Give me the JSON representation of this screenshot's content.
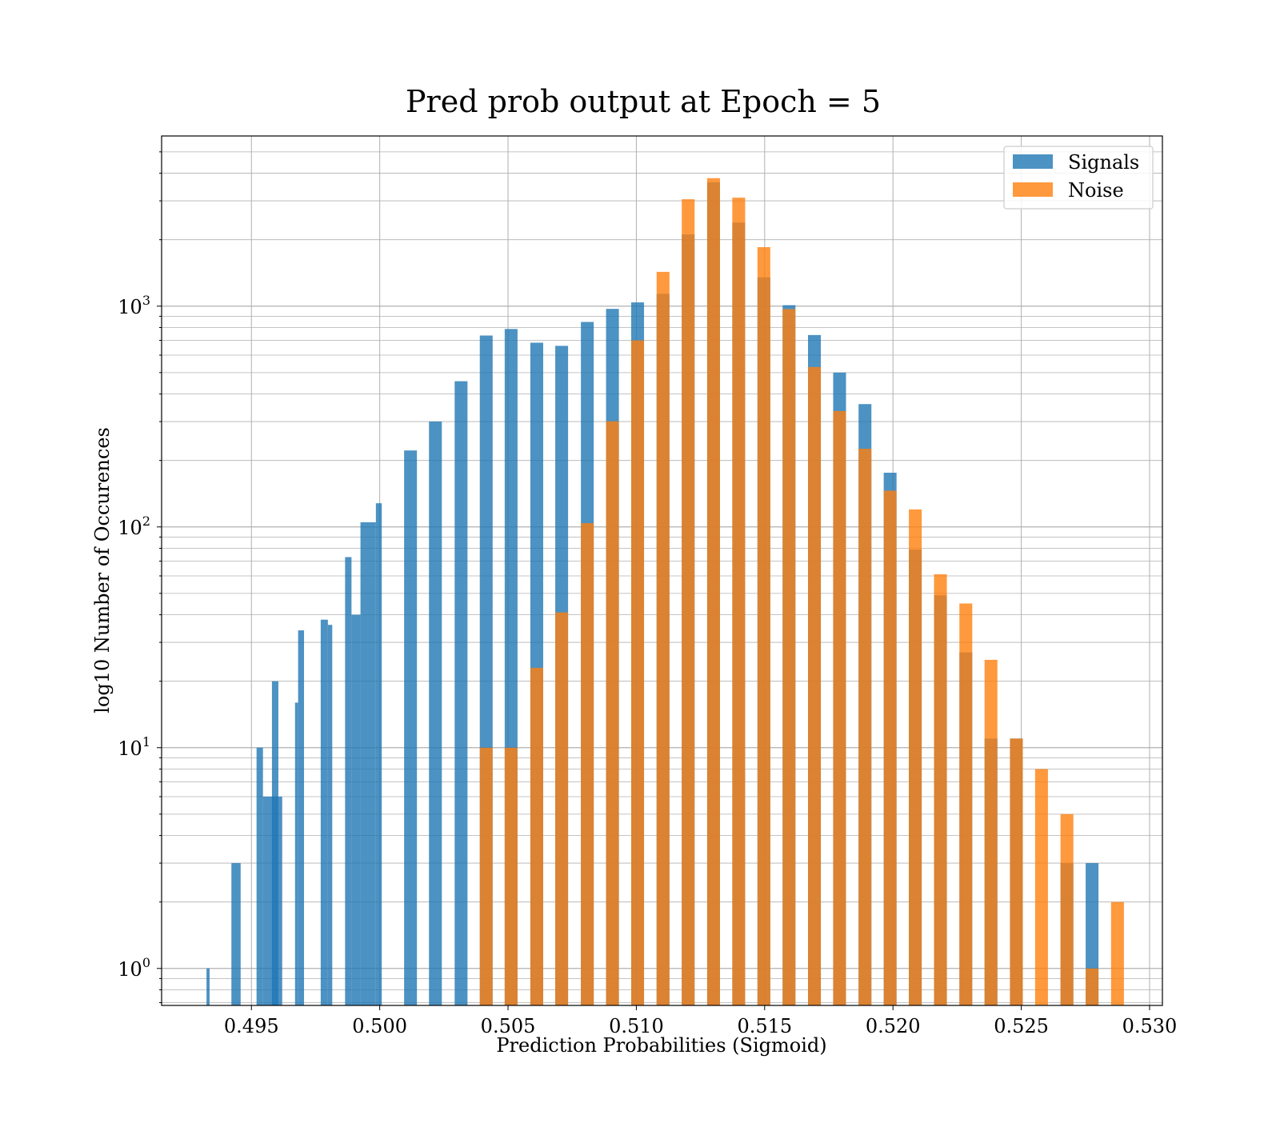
{
  "chart_data": {
    "type": "bar",
    "title": "Pred prob output at Epoch = 5",
    "xlabel": "Prediction Probabilities (Sigmoid)",
    "ylabel": "log10 Number of Occurences",
    "xlim": [
      0.4915,
      0.5305
    ],
    "ylim": [
      0.68,
      5900
    ],
    "y_scale": "log",
    "grid": true,
    "legend_position": "top-right",
    "x_ticks": [
      0.495,
      0.5,
      0.505,
      0.51,
      0.515,
      0.52,
      0.525,
      0.53
    ],
    "x_tick_labels": [
      "0.495",
      "0.500",
      "0.505",
      "0.510",
      "0.515",
      "0.520",
      "0.525",
      "0.530"
    ],
    "y_ticks": [
      {
        "value": 1,
        "base": "10",
        "exp": "0"
      },
      {
        "value": 10,
        "base": "10",
        "exp": "1"
      },
      {
        "value": 100,
        "base": "10",
        "exp": "2"
      },
      {
        "value": 1000,
        "base": "10",
        "exp": "3"
      }
    ],
    "series": [
      {
        "name": "Signals",
        "color": "#1f77b4",
        "opacity": 0.8,
        "bars": [
          {
            "x0": 0.49325,
            "x1": 0.49337,
            "y": 1
          },
          {
            "x0": 0.49422,
            "x1": 0.49458,
            "y": 3
          },
          {
            "x0": 0.4952,
            "x1": 0.49545,
            "y": 10
          },
          {
            "x0": 0.49545,
            "x1": 0.4962,
            "y": 6
          },
          {
            "x0": 0.4958,
            "x1": 0.49605,
            "y": 20
          },
          {
            "x0": 0.4967,
            "x1": 0.49682,
            "y": 16
          },
          {
            "x0": 0.49682,
            "x1": 0.49705,
            "y": 34
          },
          {
            "x0": 0.4977,
            "x1": 0.49798,
            "y": 38
          },
          {
            "x0": 0.49798,
            "x1": 0.49815,
            "y": 36
          },
          {
            "x0": 0.49865,
            "x1": 0.4989,
            "y": 73
          },
          {
            "x0": 0.4989,
            "x1": 0.49925,
            "y": 40
          },
          {
            "x0": 0.49925,
            "x1": 0.49985,
            "y": 105
          },
          {
            "x0": 0.49985,
            "x1": 0.50008,
            "y": 128
          },
          {
            "x0": 0.50095,
            "x1": 0.50145,
            "y": 222
          },
          {
            "x0": 0.50192,
            "x1": 0.50242,
            "y": 300
          },
          {
            "x0": 0.50292,
            "x1": 0.50342,
            "y": 457
          },
          {
            "x0": 0.5039,
            "x1": 0.5044,
            "y": 736
          },
          {
            "x0": 0.50487,
            "x1": 0.50537,
            "y": 788
          },
          {
            "x0": 0.50587,
            "x1": 0.50637,
            "y": 683
          },
          {
            "x0": 0.50684,
            "x1": 0.50734,
            "y": 661
          },
          {
            "x0": 0.50784,
            "x1": 0.50834,
            "y": 848
          },
          {
            "x0": 0.50882,
            "x1": 0.50932,
            "y": 972
          },
          {
            "x0": 0.5098,
            "x1": 0.5103,
            "y": 1040
          },
          {
            "x0": 0.51079,
            "x1": 0.51129,
            "y": 1137
          },
          {
            "x0": 0.51177,
            "x1": 0.51227,
            "y": 2112
          },
          {
            "x0": 0.51276,
            "x1": 0.51326,
            "y": 3640
          },
          {
            "x0": 0.51374,
            "x1": 0.51424,
            "y": 2390
          },
          {
            "x0": 0.51472,
            "x1": 0.51522,
            "y": 1350
          },
          {
            "x0": 0.5157,
            "x1": 0.5162,
            "y": 1010
          },
          {
            "x0": 0.51669,
            "x1": 0.51719,
            "y": 740
          },
          {
            "x0": 0.51767,
            "x1": 0.51817,
            "y": 500
          },
          {
            "x0": 0.51866,
            "x1": 0.51916,
            "y": 360
          },
          {
            "x0": 0.51964,
            "x1": 0.52014,
            "y": 176
          },
          {
            "x0": 0.52062,
            "x1": 0.52112,
            "y": 79
          },
          {
            "x0": 0.5216,
            "x1": 0.5221,
            "y": 49
          },
          {
            "x0": 0.52259,
            "x1": 0.52309,
            "y": 27
          },
          {
            "x0": 0.52357,
            "x1": 0.52407,
            "y": 11
          },
          {
            "x0": 0.52456,
            "x1": 0.52506,
            "y": 11
          },
          {
            "x0": 0.52653,
            "x1": 0.52703,
            "y": 3
          },
          {
            "x0": 0.52751,
            "x1": 0.52801,
            "y": 3
          }
        ]
      },
      {
        "name": "Noise",
        "color": "#ff7f0e",
        "opacity": 0.8,
        "bars": [
          {
            "x0": 0.5039,
            "x1": 0.5044,
            "y": 10
          },
          {
            "x0": 0.50487,
            "x1": 0.50537,
            "y": 10
          },
          {
            "x0": 0.50587,
            "x1": 0.50637,
            "y": 23
          },
          {
            "x0": 0.50684,
            "x1": 0.50734,
            "y": 41
          },
          {
            "x0": 0.50784,
            "x1": 0.50834,
            "y": 104
          },
          {
            "x0": 0.50882,
            "x1": 0.50932,
            "y": 301
          },
          {
            "x0": 0.5098,
            "x1": 0.5103,
            "y": 700
          },
          {
            "x0": 0.51079,
            "x1": 0.51129,
            "y": 1430
          },
          {
            "x0": 0.51177,
            "x1": 0.51227,
            "y": 3050
          },
          {
            "x0": 0.51276,
            "x1": 0.51326,
            "y": 3800
          },
          {
            "x0": 0.51374,
            "x1": 0.51424,
            "y": 3100
          },
          {
            "x0": 0.51472,
            "x1": 0.51522,
            "y": 1850
          },
          {
            "x0": 0.5157,
            "x1": 0.5162,
            "y": 970
          },
          {
            "x0": 0.51669,
            "x1": 0.51719,
            "y": 530
          },
          {
            "x0": 0.51767,
            "x1": 0.51817,
            "y": 335
          },
          {
            "x0": 0.51866,
            "x1": 0.51916,
            "y": 226
          },
          {
            "x0": 0.51964,
            "x1": 0.52014,
            "y": 146
          },
          {
            "x0": 0.52062,
            "x1": 0.52112,
            "y": 120
          },
          {
            "x0": 0.5216,
            "x1": 0.5221,
            "y": 61
          },
          {
            "x0": 0.52259,
            "x1": 0.52309,
            "y": 45
          },
          {
            "x0": 0.52357,
            "x1": 0.52407,
            "y": 25
          },
          {
            "x0": 0.52456,
            "x1": 0.52506,
            "y": 11
          },
          {
            "x0": 0.52554,
            "x1": 0.52604,
            "y": 8
          },
          {
            "x0": 0.52653,
            "x1": 0.52703,
            "y": 5
          },
          {
            "x0": 0.52751,
            "x1": 0.52801,
            "y": 1
          },
          {
            "x0": 0.5285,
            "x1": 0.529,
            "y": 2
          }
        ]
      }
    ]
  }
}
